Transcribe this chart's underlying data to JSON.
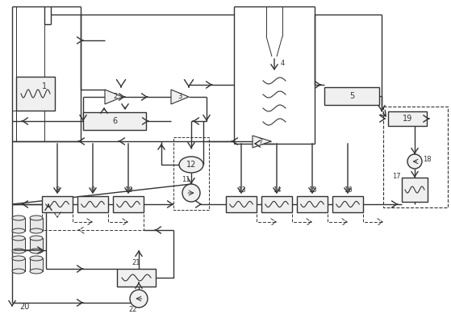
{
  "figsize": [
    5.59,
    3.89
  ],
  "dpi": 100,
  "lc": "#333333",
  "lw_main": 1.0,
  "lw_thin": 0.7
}
